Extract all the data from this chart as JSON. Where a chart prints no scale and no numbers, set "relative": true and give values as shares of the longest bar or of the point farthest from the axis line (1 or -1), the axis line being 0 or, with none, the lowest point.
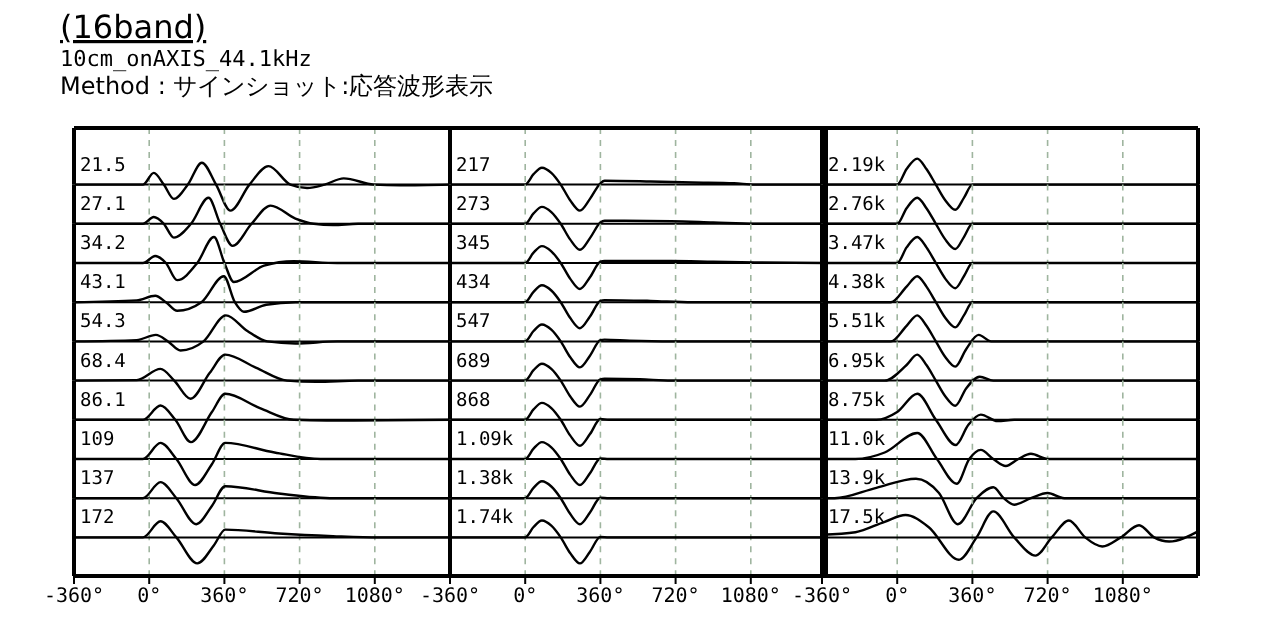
{
  "chart_data": [
    {
      "type": "other",
      "title": "(16band)",
      "subtitle": "10cm_onAXIS_44.1kHz",
      "annotations": [
        "Method :  サインショット:応答波形表示"
      ]
    },
    {
      "type": "line",
      "title": "21.5",
      "relative": true,
      "color": "#000000",
      "x": [
        -360,
        -30,
        22,
        70,
        118,
        185,
        252,
        320,
        389,
        480,
        571,
        676,
        756,
        840,
        931,
        1075,
        1200,
        1440
      ],
      "values": [
        0,
        0,
        0.45,
        0,
        -0.55,
        0,
        0.84,
        0,
        -1,
        0,
        0.71,
        0,
        -0.13,
        0,
        0.24,
        0,
        -0.03,
        0
      ],
      "xlim": [
        -360,
        1440
      ],
      "xticks": [
        -360,
        0,
        360,
        720,
        1080
      ],
      "grid": "x",
      "tick_labels": false
    },
    {
      "type": "line",
      "title": "27.1",
      "relative": true,
      "color": "#000000",
      "x": [
        -360,
        -30,
        22,
        70,
        118,
        200,
        284,
        340,
        399,
        490,
        581,
        700,
        788,
        880,
        1000,
        1440
      ],
      "values": [
        0,
        0,
        0.26,
        0,
        -0.53,
        0,
        1,
        0,
        -0.85,
        0,
        0.7,
        0.2,
        0,
        -0.05,
        0,
        0
      ],
      "xlim": [
        -360,
        1440
      ],
      "xticks": [
        -360,
        0,
        360,
        720,
        1080
      ],
      "grid": "x",
      "tick_labels": false
    },
    {
      "type": "line",
      "title": "34.2",
      "relative": true,
      "color": "#000000",
      "x": [
        -360,
        -30,
        29,
        80,
        134,
        230,
        310,
        360,
        405,
        550,
        692,
        900,
        1440
      ],
      "values": [
        0,
        0,
        0.27,
        0,
        -0.66,
        0,
        1,
        0,
        -0.73,
        -0.1,
        0.07,
        0,
        0
      ],
      "xlim": [
        -360,
        1440
      ],
      "xticks": [
        -360,
        0,
        360,
        720,
        1080
      ],
      "grid": "x",
      "tick_labels": false
    },
    {
      "type": "line",
      "title": "43.1",
      "relative": true,
      "color": "#000000",
      "x": [
        -360,
        -60,
        29,
        80,
        134,
        250,
        357,
        410,
        453,
        560,
        700,
        1440
      ],
      "values": [
        0,
        0.07,
        0.25,
        0,
        -0.33,
        0,
        1,
        0,
        -0.37,
        -0.1,
        0,
        0
      ],
      "xlim": [
        -360,
        1440
      ],
      "xticks": [
        -360,
        0,
        360,
        720,
        1080
      ],
      "grid": "x",
      "tick_labels": false
    },
    {
      "type": "line",
      "title": "54.3",
      "relative": true,
      "color": "#000000",
      "x": [
        -360,
        -60,
        32,
        90,
        150,
        260,
        367,
        470,
        565,
        700,
        900,
        1440
      ],
      "values": [
        0,
        0.05,
        0.25,
        0,
        -0.35,
        0,
        1,
        0.4,
        0,
        -0.08,
        0,
        0
      ],
      "xlim": [
        -360,
        1440
      ],
      "xticks": [
        -360,
        0,
        360,
        720,
        1080
      ],
      "grid": "x",
      "tick_labels": false
    },
    {
      "type": "line",
      "title": "68.4",
      "relative": true,
      "color": "#000000",
      "x": [
        -360,
        -60,
        54,
        120,
        198,
        290,
        364,
        510,
        660,
        800,
        1000,
        1440
      ],
      "values": [
        0,
        0.02,
        0.45,
        0,
        -0.7,
        0.3,
        1,
        0.5,
        0,
        -0.05,
        0,
        0
      ],
      "xlim": [
        -360,
        1440
      ],
      "xticks": [
        -360,
        0,
        360,
        720,
        1080
      ],
      "grid": "x",
      "tick_labels": false
    },
    {
      "type": "line",
      "title": "86.1",
      "relative": true,
      "color": "#000000",
      "x": [
        -360,
        -30,
        54,
        125,
        200,
        300,
        364,
        530,
        692,
        850,
        1440
      ],
      "values": [
        0,
        0,
        0.55,
        0,
        -0.86,
        0.3,
        1,
        0.45,
        0,
        -0.03,
        0
      ],
      "xlim": [
        -360,
        1440
      ],
      "xticks": [
        -360,
        0,
        360,
        720,
        1080
      ],
      "grid": "x",
      "tick_labels": false
    },
    {
      "type": "line",
      "title": "109",
      "relative": true,
      "color": "#000000",
      "x": [
        -360,
        -30,
        54,
        130,
        220,
        300,
        364,
        600,
        820,
        1440
      ],
      "values": [
        0,
        0,
        0.62,
        0,
        -1,
        -0.2,
        0.62,
        0.25,
        0,
        0
      ],
      "xlim": [
        -360,
        1440
      ],
      "xticks": [
        -360,
        0,
        360,
        720,
        1080
      ],
      "grid": "x",
      "tick_labels": false
    },
    {
      "type": "line",
      "title": "137",
      "relative": true,
      "color": "#000000",
      "x": [
        -360,
        -30,
        54,
        130,
        225,
        300,
        364,
        620,
        884,
        1440
      ],
      "values": [
        0,
        0,
        0.62,
        0,
        -1,
        -0.3,
        0.46,
        0.18,
        0,
        0
      ],
      "xlim": [
        -360,
        1440
      ],
      "xticks": [
        -360,
        0,
        360,
        720,
        1080
      ],
      "grid": "x",
      "tick_labels": false
    },
    {
      "type": "line",
      "title": "172",
      "relative": true,
      "color": "#000000",
      "x": [
        -360,
        -30,
        54,
        130,
        230,
        310,
        364,
        620,
        880,
        1100,
        1440
      ],
      "values": [
        0,
        0,
        0.62,
        0,
        -1,
        -0.3,
        0.3,
        0.15,
        0.05,
        0,
        0
      ],
      "xlim": [
        -360,
        1440
      ],
      "xticks": [
        {
          "value": -360,
          "label": "-360°"
        },
        {
          "value": 0,
          "label": "0°"
        },
        {
          "value": 360,
          "label": "360°"
        },
        {
          "value": 720,
          "label": "720°"
        },
        {
          "value": 1080,
          "label": "1080°"
        }
      ],
      "grid": "x",
      "tick_labels": "x"
    },
    {
      "type": "line",
      "title": "217",
      "relative": true,
      "color": "#000000",
      "x": [
        -360,
        0,
        40,
        80,
        125,
        170,
        215,
        262,
        310,
        360,
        380,
        600,
        800,
        1000,
        1100,
        1440
      ],
      "values": [
        0,
        0,
        0.4,
        0.65,
        0.45,
        0,
        -0.6,
        -1,
        -0.55,
        0.05,
        0.15,
        0.12,
        0.08,
        0.05,
        0,
        0
      ],
      "xlim": [
        -360,
        1440
      ],
      "xticks": [
        -360,
        0,
        360,
        720,
        1080
      ],
      "grid": "x",
      "tick_labels": false
    },
    {
      "type": "line",
      "title": "273",
      "relative": true,
      "color": "#000000",
      "x": [
        -360,
        0,
        40,
        80,
        125,
        170,
        215,
        262,
        310,
        360,
        380,
        700,
        900,
        1100,
        1440
      ],
      "values": [
        0,
        0,
        0.4,
        0.65,
        0.45,
        0,
        -0.6,
        -1,
        -0.55,
        0.05,
        0.12,
        0.1,
        0.05,
        0,
        0
      ],
      "xlim": [
        -360,
        1440
      ],
      "xticks": [
        -360,
        0,
        360,
        720,
        1080
      ],
      "grid": "x",
      "tick_labels": false
    },
    {
      "type": "line",
      "title": "345",
      "relative": true,
      "color": "#000000",
      "x": [
        -360,
        0,
        40,
        80,
        125,
        170,
        215,
        262,
        310,
        360,
        380,
        700,
        900,
        1100,
        1440
      ],
      "values": [
        0,
        0,
        0.4,
        0.65,
        0.45,
        0,
        -0.6,
        -1,
        -0.55,
        0.05,
        0.08,
        0.08,
        0.05,
        0.02,
        0
      ],
      "xlim": [
        -360,
        1440
      ],
      "xticks": [
        -360,
        0,
        360,
        720,
        1080
      ],
      "grid": "x",
      "tick_labels": false
    },
    {
      "type": "line",
      "title": "434",
      "relative": true,
      "color": "#000000",
      "x": [
        -360,
        0,
        40,
        80,
        125,
        170,
        215,
        262,
        310,
        360,
        380,
        600,
        800,
        1440
      ],
      "values": [
        0,
        0,
        0.4,
        0.65,
        0.45,
        0,
        -0.6,
        -1,
        -0.55,
        0.05,
        0.08,
        0.05,
        0,
        0
      ],
      "xlim": [
        -360,
        1440
      ],
      "xticks": [
        -360,
        0,
        360,
        720,
        1080
      ],
      "grid": "x",
      "tick_labels": false
    },
    {
      "type": "line",
      "title": "547",
      "relative": true,
      "color": "#000000",
      "x": [
        -360,
        0,
        40,
        80,
        125,
        170,
        215,
        262,
        310,
        360,
        380,
        500,
        700,
        1440
      ],
      "values": [
        0,
        0,
        0.4,
        0.65,
        0.45,
        0,
        -0.6,
        -1,
        -0.55,
        0.05,
        0.07,
        0.03,
        0,
        0
      ],
      "xlim": [
        -360,
        1440
      ],
      "xticks": [
        -360,
        0,
        360,
        720,
        1080
      ],
      "grid": "x",
      "tick_labels": false
    },
    {
      "type": "line",
      "title": "689",
      "relative": true,
      "color": "#000000",
      "x": [
        -360,
        0,
        40,
        80,
        125,
        170,
        215,
        262,
        310,
        360,
        380,
        550,
        700,
        1440
      ],
      "values": [
        0,
        0,
        0.4,
        0.65,
        0.45,
        0,
        -0.6,
        -1,
        -0.55,
        0.05,
        0.07,
        0.05,
        0,
        0
      ],
      "xlim": [
        -360,
        1440
      ],
      "xticks": [
        -360,
        0,
        360,
        720,
        1080
      ],
      "grid": "x",
      "tick_labels": false
    },
    {
      "type": "line",
      "title": "868",
      "relative": true,
      "color": "#000000",
      "x": [
        -360,
        0,
        40,
        80,
        125,
        170,
        215,
        262,
        310,
        360,
        400,
        1440
      ],
      "values": [
        0,
        0,
        0.4,
        0.65,
        0.45,
        0,
        -0.6,
        -1,
        -0.55,
        0.03,
        0,
        0
      ],
      "xlim": [
        -360,
        1440
      ],
      "xticks": [
        -360,
        0,
        360,
        720,
        1080
      ],
      "grid": "x",
      "tick_labels": false
    },
    {
      "type": "line",
      "title": "1.09k",
      "relative": true,
      "color": "#000000",
      "x": [
        -360,
        0,
        40,
        80,
        125,
        170,
        215,
        262,
        310,
        360,
        400,
        1440
      ],
      "values": [
        0,
        0,
        0.4,
        0.65,
        0.45,
        0,
        -0.6,
        -1,
        -0.55,
        0.02,
        0,
        0
      ],
      "xlim": [
        -360,
        1440
      ],
      "xticks": [
        -360,
        0,
        360,
        720,
        1080
      ],
      "grid": "x",
      "tick_labels": false
    },
    {
      "type": "line",
      "title": "1.38k",
      "relative": true,
      "color": "#000000",
      "x": [
        -360,
        0,
        40,
        80,
        125,
        170,
        215,
        262,
        310,
        360,
        400,
        1440
      ],
      "values": [
        0,
        0,
        0.4,
        0.65,
        0.45,
        0,
        -0.6,
        -1,
        -0.55,
        0.02,
        0,
        0
      ],
      "xlim": [
        -360,
        1440
      ],
      "xticks": [
        -360,
        0,
        360,
        720,
        1080
      ],
      "grid": "x",
      "tick_labels": false
    },
    {
      "type": "line",
      "title": "1.74k",
      "relative": true,
      "color": "#000000",
      "x": [
        -360,
        0,
        40,
        80,
        125,
        170,
        215,
        262,
        310,
        360,
        400,
        1440
      ],
      "values": [
        0,
        0,
        0.4,
        0.65,
        0.45,
        0,
        -0.6,
        -1,
        -0.55,
        0.02,
        0,
        0
      ],
      "xlim": [
        -360,
        1440
      ],
      "xticks": [
        {
          "value": -360,
          "label": "-360°"
        },
        {
          "value": 0,
          "label": "0°"
        },
        {
          "value": 360,
          "label": "360°"
        },
        {
          "value": 720,
          "label": "720°"
        },
        {
          "value": 1080,
          "label": "1080°"
        }
      ],
      "grid": "x",
      "tick_labels": "x"
    },
    {
      "type": "line",
      "title": "2.19k",
      "relative": true,
      "color": "#000000",
      "x": [
        -360,
        0,
        45,
        96,
        140,
        185,
        230,
        278,
        320,
        360,
        1440
      ],
      "values": [
        0,
        0,
        0.6,
        1,
        0.6,
        0,
        -0.6,
        -0.97,
        -0.5,
        0,
        0
      ],
      "xlim": [
        -360,
        1440
      ],
      "xticks": [
        -360,
        0,
        360,
        720,
        1080
      ],
      "grid": "x",
      "tick_labels": false
    },
    {
      "type": "line",
      "title": "2.76k",
      "relative": true,
      "color": "#000000",
      "x": [
        -360,
        0,
        45,
        96,
        140,
        185,
        230,
        278,
        320,
        360,
        1440
      ],
      "values": [
        0,
        0,
        0.6,
        1,
        0.6,
        0,
        -0.6,
        -0.97,
        -0.5,
        0,
        0
      ],
      "xlim": [
        -360,
        1440
      ],
      "xticks": [
        -360,
        0,
        360,
        720,
        1080
      ],
      "grid": "x",
      "tick_labels": false
    },
    {
      "type": "line",
      "title": "3.47k",
      "relative": true,
      "color": "#000000",
      "x": [
        -360,
        0,
        45,
        96,
        140,
        185,
        230,
        278,
        320,
        360,
        1440
      ],
      "values": [
        0,
        0,
        0.6,
        1,
        0.6,
        0,
        -0.6,
        -0.97,
        -0.5,
        0,
        0
      ],
      "xlim": [
        -360,
        1440
      ],
      "xticks": [
        -360,
        0,
        360,
        720,
        1080
      ],
      "grid": "x",
      "tick_labels": false
    },
    {
      "type": "line",
      "title": "4.38k",
      "relative": true,
      "color": "#000000",
      "x": [
        -360,
        -30,
        45,
        96,
        140,
        185,
        230,
        278,
        320,
        360,
        1440
      ],
      "values": [
        0,
        0,
        0.6,
        1,
        0.6,
        0,
        -0.6,
        -0.97,
        -0.5,
        0,
        0
      ],
      "xlim": [
        -360,
        1440
      ],
      "xticks": [
        -360,
        0,
        360,
        720,
        1080
      ],
      "grid": "x",
      "tick_labels": false
    },
    {
      "type": "line",
      "title": "5.51k",
      "relative": true,
      "color": "#000000",
      "x": [
        -360,
        -30,
        45,
        96,
        140,
        185,
        230,
        278,
        330,
        390,
        450,
        1440
      ],
      "values": [
        0,
        0,
        0.6,
        1,
        0.6,
        0,
        -0.6,
        -0.97,
        -0.3,
        0.25,
        0,
        0
      ],
      "xlim": [
        -360,
        1440
      ],
      "xticks": [
        -360,
        0,
        360,
        720,
        1080
      ],
      "grid": "x",
      "tick_labels": false
    },
    {
      "type": "line",
      "title": "6.95k",
      "relative": true,
      "color": "#000000",
      "x": [
        -360,
        -60,
        45,
        96,
        140,
        185,
        230,
        278,
        330,
        395,
        460,
        1440
      ],
      "values": [
        0,
        0,
        0.6,
        1,
        0.6,
        0,
        -0.6,
        -0.97,
        -0.3,
        0.15,
        0,
        0
      ],
      "xlim": [
        -360,
        1440
      ],
      "xticks": [
        -360,
        0,
        360,
        720,
        1080
      ],
      "grid": "x",
      "tick_labels": false
    },
    {
      "type": "line",
      "title": "8.75k",
      "relative": true,
      "color": "#000000",
      "x": [
        -360,
        -100,
        0,
        96,
        185,
        280,
        340,
        400,
        480,
        560,
        1440
      ],
      "values": [
        0,
        0,
        0.3,
        1,
        0,
        -0.97,
        -0.2,
        0.2,
        -0.05,
        0,
        0
      ],
      "xlim": [
        -360,
        1440
      ],
      "xticks": [
        -360,
        0,
        360,
        720,
        1080
      ],
      "grid": "x",
      "tick_labels": false
    },
    {
      "type": "line",
      "title": "11.0k",
      "relative": true,
      "color": "#000000",
      "x": [
        -360,
        -200,
        -60,
        96,
        190,
        285,
        345,
        400,
        460,
        520,
        580,
        640,
        720,
        1440
      ],
      "values": [
        0,
        0,
        0.25,
        1,
        0,
        -0.95,
        0,
        0.35,
        0,
        -0.27,
        0,
        0.2,
        0,
        0
      ],
      "xlim": [
        -360,
        1440
      ],
      "xticks": [
        -360,
        0,
        360,
        720,
        1080
      ],
      "grid": "x",
      "tick_labels": false
    },
    {
      "type": "line",
      "title": "13.9k",
      "relative": true,
      "color": "#000000",
      "x": [
        -360,
        -300,
        -100,
        90,
        200,
        290,
        380,
        460,
        510,
        560,
        640,
        720,
        800,
        1440
      ],
      "values": [
        0,
        0,
        0.4,
        0.75,
        0.2,
        -1,
        0,
        0.42,
        0,
        -0.25,
        0,
        0.2,
        0,
        0
      ],
      "xlim": [
        -360,
        1440
      ],
      "xticks": [
        -360,
        0,
        360,
        720,
        1080
      ],
      "grid": "x",
      "tick_labels": false
    },
    {
      "type": "line",
      "title": "17.5k",
      "relative": true,
      "color": "#000000",
      "x": [
        -360,
        -200,
        -60,
        40,
        150,
        295,
        380,
        460,
        560,
        662,
        740,
        822,
        900,
        982,
        1070,
        1158,
        1230,
        1302,
        1440
      ],
      "values": [
        0.1,
        0.2,
        0.6,
        0.86,
        0.4,
        -0.86,
        0,
        1,
        0,
        -0.7,
        0,
        0.65,
        0,
        -0.35,
        0,
        0.47,
        0,
        -0.16,
        0.23
      ],
      "xlim": [
        -360,
        1440
      ],
      "xticks": [
        {
          "value": -360,
          "label": "-360°"
        },
        {
          "value": 0,
          "label": "0°"
        },
        {
          "value": 360,
          "label": "360°"
        },
        {
          "value": 720,
          "label": "720°"
        },
        {
          "value": 1080,
          "label": "1080°"
        }
      ],
      "grid": "x",
      "tick_labels": "x"
    }
  ]
}
